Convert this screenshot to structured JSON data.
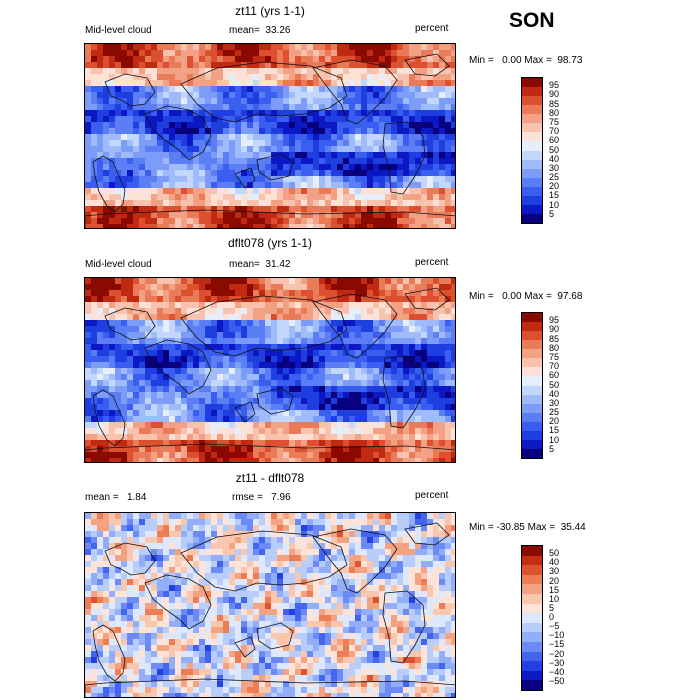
{
  "season": "SON",
  "panels": [
    {
      "title": "zt11 (yrs 1-1)",
      "left_label": "Mid-level cloud",
      "mid_label": "mean=  33.26",
      "right_label": "percent",
      "min_max": "Min =   0.00 Max =  98.73",
      "colorbar_labels": [
        "95",
        "90",
        "85",
        "80",
        "75",
        "70",
        "60",
        "50",
        "40",
        "30",
        "25",
        "20",
        "15",
        "10",
        "5"
      ]
    },
    {
      "title": "dflt078 (yrs 1-1)",
      "left_label": "Mid-level cloud",
      "mid_label": "mean=  31.42",
      "right_label": "percent",
      "min_max": "Min =   0.00 Max =  97.68",
      "colorbar_labels": [
        "95",
        "90",
        "85",
        "80",
        "75",
        "70",
        "60",
        "50",
        "40",
        "30",
        "25",
        "20",
        "15",
        "10",
        "5"
      ]
    },
    {
      "title": "zt11 - dflt078",
      "left_label": "mean =   1.84",
      "mid_label": "rmse =   7.96",
      "right_label": "percent",
      "min_max": "Min = -30.85 Max =  35.44",
      "colorbar_labels": [
        "50",
        "40",
        "30",
        "20",
        "15",
        "10",
        "5",
        "0",
        "−5",
        "−10",
        "−15",
        "−20",
        "−30",
        "−40",
        "−50"
      ]
    }
  ],
  "colors": {
    "field_palette": [
      "#08007f",
      "#0c18c4",
      "#1e3ee0",
      "#3a5ef0",
      "#5b7ef5",
      "#7c9cf8",
      "#9fbbfa",
      "#c3d6fb",
      "#e6eefc",
      "#fbe1d6",
      "#f8c3ae",
      "#f2a184",
      "#ea7b58",
      "#dc5030",
      "#c12a12",
      "#8b0a00"
    ],
    "diff_palette": [
      "#08007f",
      "#0c18c4",
      "#2240e3",
      "#4364ef",
      "#6b8af5",
      "#93aef8",
      "#b8cdfa",
      "#dde8fc",
      "#fde3d8",
      "#f9c6ae",
      "#f4a382",
      "#ec7d54",
      "#dd532f",
      "#c42d12",
      "#8b0a00"
    ]
  }
}
